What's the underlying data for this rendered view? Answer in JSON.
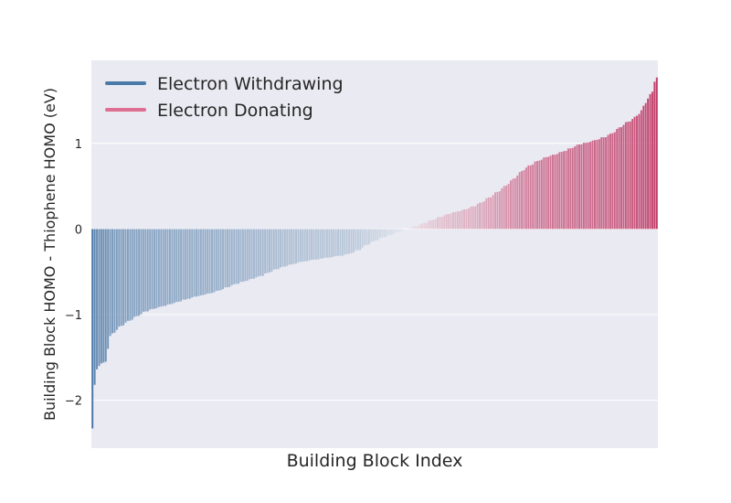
{
  "chart_data": {
    "type": "bar",
    "xlabel": "Building Block Index",
    "ylabel": "Building Block HOMO - Thiophene HOMO (eV)",
    "ylim": [
      -2.56,
      1.97
    ],
    "yticks": [
      -2,
      -1,
      0,
      1
    ],
    "ytick_labels": [
      "−2",
      "−1",
      "0",
      "1"
    ],
    "grid": true,
    "sorted": "ascending",
    "n_bars": 256,
    "anchors": [
      [
        0,
        -2.33
      ],
      [
        1,
        -1.82
      ],
      [
        2,
        -1.64
      ],
      [
        3,
        -1.6
      ],
      [
        4,
        -1.57
      ],
      [
        5,
        -1.56
      ],
      [
        6,
        -1.55
      ],
      [
        8,
        -1.25
      ],
      [
        10,
        -1.2
      ],
      [
        13,
        -1.13
      ],
      [
        18,
        -1.05
      ],
      [
        25,
        -0.95
      ],
      [
        35,
        -0.88
      ],
      [
        45,
        -0.8
      ],
      [
        55,
        -0.74
      ],
      [
        65,
        -0.64
      ],
      [
        75,
        -0.56
      ],
      [
        85,
        -0.45
      ],
      [
        95,
        -0.38
      ],
      [
        105,
        -0.34
      ],
      [
        115,
        -0.3
      ],
      [
        120,
        -0.25
      ],
      [
        125,
        -0.17
      ],
      [
        130,
        -0.11
      ],
      [
        138,
        -0.04
      ],
      [
        142,
        0.0
      ],
      [
        148,
        0.05
      ],
      [
        155,
        0.12
      ],
      [
        160,
        0.17
      ],
      [
        170,
        0.24
      ],
      [
        175,
        0.3
      ],
      [
        180,
        0.38
      ],
      [
        185,
        0.47
      ],
      [
        190,
        0.58
      ],
      [
        195,
        0.7
      ],
      [
        200,
        0.78
      ],
      [
        205,
        0.84
      ],
      [
        210,
        0.88
      ],
      [
        215,
        0.93
      ],
      [
        220,
        0.99
      ],
      [
        225,
        1.02
      ],
      [
        230,
        1.06
      ],
      [
        235,
        1.12
      ],
      [
        240,
        1.22
      ],
      [
        245,
        1.3
      ],
      [
        248,
        1.38
      ],
      [
        251,
        1.53
      ],
      [
        253,
        1.6
      ],
      [
        254,
        1.72
      ],
      [
        255,
        1.77
      ]
    ],
    "legend": {
      "placement": "top-left",
      "entries": [
        {
          "label": "Electron Withdrawing",
          "color": "#4a7ba8"
        },
        {
          "label": "Electron Donating",
          "color": "#de6e92"
        }
      ]
    },
    "colors": {
      "negative": "#4a77a6",
      "neutral": "#eeeef2",
      "positive": "#c03a66",
      "background": "#eaeaf2",
      "grid": "#ffffff"
    }
  }
}
